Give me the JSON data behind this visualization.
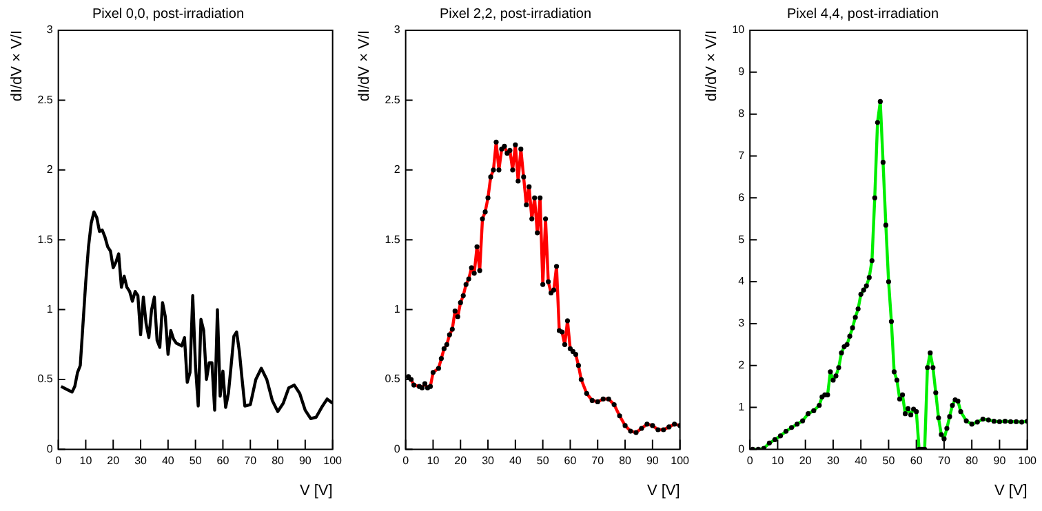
{
  "chart_data": [
    {
      "type": "line",
      "title": "Pixel 0,0, post-irradiation",
      "xlabel": "V [V]",
      "ylabel": "dI/dV × V/I",
      "xlim": [
        0,
        100
      ],
      "xticks": [
        0,
        10,
        20,
        30,
        40,
        50,
        60,
        70,
        80,
        90,
        100
      ],
      "ylim": [
        0,
        3
      ],
      "yticks": [
        0,
        0.5,
        1,
        1.5,
        2,
        2.5,
        3
      ],
      "grid": false,
      "legend": false,
      "marker": "none",
      "line_style": "solid",
      "x": [
        1,
        3,
        5,
        6,
        7,
        8,
        9,
        10,
        11,
        12,
        13,
        14,
        15,
        16,
        17,
        18,
        19,
        20,
        21,
        22,
        23,
        24,
        25,
        26,
        27,
        28,
        29,
        30,
        31,
        32,
        33,
        34,
        35,
        36,
        37,
        38,
        39,
        40,
        41,
        42,
        43,
        44,
        45,
        46,
        47,
        48,
        49,
        50,
        51,
        52,
        53,
        54,
        55,
        56,
        57,
        58,
        59,
        60,
        61,
        62,
        63,
        64,
        65,
        66,
        67,
        68,
        70,
        72,
        74,
        76,
        78,
        80,
        82,
        84,
        86,
        88,
        90,
        92,
        94,
        96,
        98,
        100
      ],
      "series": [
        {
          "color": "#000000",
          "values": [
            0.45,
            0.43,
            0.41,
            0.45,
            0.55,
            0.6,
            0.9,
            1.2,
            1.45,
            1.62,
            1.7,
            1.66,
            1.56,
            1.57,
            1.52,
            1.45,
            1.42,
            1.3,
            1.34,
            1.4,
            1.16,
            1.24,
            1.16,
            1.13,
            1.06,
            1.13,
            1.1,
            0.82,
            1.09,
            0.9,
            0.8,
            1.0,
            1.09,
            0.78,
            0.73,
            1.05,
            0.95,
            0.68,
            0.85,
            0.79,
            0.76,
            0.75,
            0.74,
            0.8,
            0.48,
            0.55,
            1.1,
            0.6,
            0.31,
            0.93,
            0.85,
            0.5,
            0.62,
            0.62,
            0.28,
            1.0,
            0.38,
            0.56,
            0.3,
            0.4,
            0.6,
            0.81,
            0.84,
            0.7,
            0.5,
            0.31,
            0.32,
            0.5,
            0.58,
            0.5,
            0.35,
            0.27,
            0.33,
            0.44,
            0.46,
            0.4,
            0.28,
            0.22,
            0.23,
            0.3,
            0.36,
            0.33
          ]
        }
      ]
    },
    {
      "type": "line",
      "title": "Pixel 2,2, post-irradiation",
      "xlabel": "V [V]",
      "ylabel": "dI/dV × V/I",
      "xlim": [
        0,
        100
      ],
      "xticks": [
        0,
        10,
        20,
        30,
        40,
        50,
        60,
        70,
        80,
        90,
        100
      ],
      "ylim": [
        0,
        3
      ],
      "yticks": [
        0,
        0.5,
        1,
        1.5,
        2,
        2.5,
        3
      ],
      "grid": false,
      "legend": false,
      "marker": "circle",
      "line_style": "solid",
      "x": [
        1,
        2,
        3,
        5,
        6,
        7,
        8,
        9,
        10,
        12,
        13,
        14,
        15,
        16,
        17,
        18,
        19,
        20,
        21,
        22,
        23,
        24,
        25,
        26,
        27,
        28,
        29,
        30,
        31,
        32,
        33,
        34,
        35,
        36,
        37,
        38,
        39,
        40,
        41,
        42,
        43,
        44,
        45,
        46,
        47,
        48,
        49,
        50,
        51,
        52,
        53,
        54,
        55,
        56,
        57,
        58,
        59,
        60,
        61,
        62,
        63,
        64,
        66,
        68,
        70,
        72,
        74,
        76,
        78,
        80,
        82,
        84,
        86,
        88,
        90,
        92,
        94,
        96,
        98,
        100
      ],
      "series": [
        {
          "color": "#ff0000",
          "values": [
            0.52,
            0.5,
            0.46,
            0.45,
            0.44,
            0.47,
            0.44,
            0.45,
            0.55,
            0.58,
            0.65,
            0.72,
            0.75,
            0.82,
            0.86,
            0.99,
            0.95,
            1.05,
            1.1,
            1.18,
            1.22,
            1.3,
            1.26,
            1.45,
            1.28,
            1.65,
            1.7,
            1.8,
            1.95,
            2.0,
            2.2,
            2.0,
            2.15,
            2.17,
            2.12,
            2.14,
            2.0,
            2.18,
            1.92,
            2.15,
            1.95,
            1.75,
            1.88,
            1.65,
            1.8,
            1.55,
            1.8,
            1.18,
            1.65,
            1.2,
            1.12,
            1.14,
            1.31,
            0.85,
            0.84,
            0.75,
            0.92,
            0.72,
            0.7,
            0.68,
            0.6,
            0.5,
            0.4,
            0.35,
            0.34,
            0.36,
            0.36,
            0.32,
            0.24,
            0.17,
            0.13,
            0.12,
            0.15,
            0.18,
            0.17,
            0.14,
            0.14,
            0.16,
            0.18,
            0.17
          ]
        }
      ]
    },
    {
      "type": "line",
      "title": "Pixel 4,4, post-irradiation",
      "xlabel": "V [V]",
      "ylabel": "dI/dV × V/I",
      "xlim": [
        0,
        100
      ],
      "xticks": [
        0,
        10,
        20,
        30,
        40,
        50,
        60,
        70,
        80,
        90,
        100
      ],
      "ylim": [
        0,
        10
      ],
      "yticks": [
        0,
        1,
        2,
        3,
        4,
        5,
        6,
        7,
        8,
        9,
        10
      ],
      "grid": false,
      "legend": false,
      "marker": "circle",
      "line_style": "solid",
      "x": [
        1,
        3,
        5,
        7,
        9,
        11,
        13,
        15,
        17,
        19,
        21,
        23,
        25,
        26,
        27,
        28,
        29,
        30,
        31,
        32,
        33,
        34,
        35,
        36,
        37,
        38,
        39,
        40,
        41,
        42,
        43,
        44,
        45,
        46,
        47,
        48,
        49,
        50,
        51,
        52,
        53,
        54,
        55,
        56,
        57,
        58,
        59,
        60,
        61,
        62,
        63,
        64,
        65,
        66,
        67,
        68,
        69,
        70,
        71,
        72,
        73,
        74,
        75,
        76,
        78,
        80,
        82,
        84,
        86,
        88,
        90,
        92,
        94,
        96,
        98,
        100
      ],
      "series": [
        {
          "color": "#00ee00",
          "values": [
            0,
            0,
            0.02,
            0.15,
            0.23,
            0.32,
            0.43,
            0.52,
            0.6,
            0.68,
            0.85,
            0.92,
            1.05,
            1.25,
            1.3,
            1.3,
            1.85,
            1.65,
            1.75,
            1.95,
            2.3,
            2.45,
            2.5,
            2.7,
            2.9,
            3.15,
            3.35,
            3.7,
            3.8,
            3.9,
            4.1,
            4.5,
            6.0,
            7.8,
            8.3,
            6.85,
            5.35,
            4.0,
            3.05,
            1.85,
            1.65,
            1.2,
            1.3,
            0.85,
            0.97,
            0.82,
            0.96,
            0.9,
            0,
            0,
            0,
            1.95,
            2.3,
            1.95,
            1.35,
            0.75,
            0.35,
            0.25,
            0.5,
            0.78,
            1.05,
            1.18,
            1.15,
            0.9,
            0.68,
            0.6,
            0.65,
            0.72,
            0.7,
            0.67,
            0.66,
            0.67,
            0.66,
            0.66,
            0.65,
            0.67
          ]
        }
      ]
    }
  ]
}
